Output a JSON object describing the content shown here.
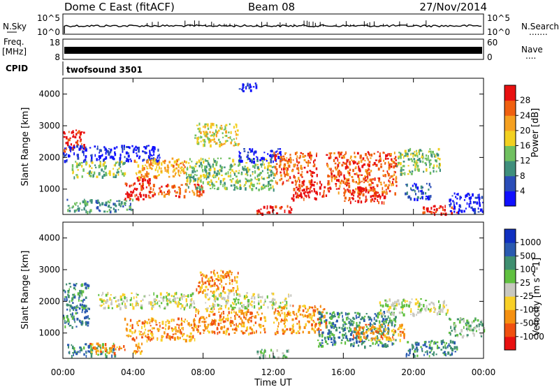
{
  "header": {
    "title": "Dome C East (fitACF)",
    "beam": "Beam 08",
    "date": "27/Nov/2014"
  },
  "nsky_panel": {
    "left_label": "N.Sky",
    "right_label": "N.Search",
    "right_dots": ".......",
    "left_ticks": [
      "10^5",
      "10^0"
    ],
    "right_ticks": [
      "10^5",
      "10^0"
    ]
  },
  "freq_panel": {
    "left_label_line1": "Freq.",
    "left_label_line2": "[MHz]",
    "right_label": "Nave",
    "right_dots": "....",
    "left_ticks": [
      "18",
      "8"
    ],
    "right_ticks": [
      "60",
      "0"
    ]
  },
  "cpid_panel": {
    "label": "CPID",
    "text": "twofsound 3501"
  },
  "chart_data": [
    {
      "type": "heatmap",
      "name": "Power",
      "ylabel": "Slant Range [km]",
      "ylim": [
        200,
        4500
      ],
      "yticks": [
        1000,
        2000,
        3000,
        4000
      ],
      "xlim": [
        0,
        24
      ],
      "colorbar": {
        "label": "Power [dB]",
        "tick_labels": [
          "4",
          "8",
          "12",
          "16",
          "20",
          "24",
          "28"
        ],
        "colors": [
          "#1010ff",
          "#2a4db8",
          "#3f8f7c",
          "#70c060",
          "#f2d020",
          "#f5a020",
          "#f06010",
          "#e81010"
        ]
      },
      "bands": [
        {
          "t0": 0.0,
          "t1": 1.2,
          "r0": 2200,
          "r1": 2900,
          "level": 7
        },
        {
          "t0": 0.0,
          "t1": 5.5,
          "r0": 1900,
          "r1": 2400,
          "level": 0
        },
        {
          "t0": 0.2,
          "t1": 4.0,
          "r0": 300,
          "r1": 700,
          "level": 2
        },
        {
          "t0": 0.5,
          "t1": 3.5,
          "r0": 1400,
          "r1": 1900,
          "level": 3
        },
        {
          "t0": 3.5,
          "t1": 5.0,
          "r0": 700,
          "r1": 1400,
          "level": 7
        },
        {
          "t0": 4.0,
          "t1": 7.0,
          "r0": 1400,
          "r1": 2000,
          "level": 5
        },
        {
          "t0": 5.0,
          "t1": 8.0,
          "r0": 800,
          "r1": 1200,
          "level": 6
        },
        {
          "t0": 7.5,
          "t1": 10.0,
          "r0": 2400,
          "r1": 3100,
          "level": 4
        },
        {
          "t0": 7.0,
          "t1": 12.0,
          "r0": 1000,
          "r1": 2000,
          "level": 3
        },
        {
          "t0": 10.0,
          "t1": 12.5,
          "r0": 1900,
          "r1": 2300,
          "level": 0
        },
        {
          "t0": 11.0,
          "t1": 13.0,
          "r0": 250,
          "r1": 500,
          "level": 7
        },
        {
          "t0": 12.0,
          "t1": 14.5,
          "r0": 1200,
          "r1": 2200,
          "level": 6
        },
        {
          "t0": 13.0,
          "t1": 15.0,
          "r0": 700,
          "r1": 1300,
          "level": 7
        },
        {
          "t0": 15.0,
          "t1": 19.0,
          "r0": 900,
          "r1": 2200,
          "level": 6
        },
        {
          "t0": 16.0,
          "t1": 18.5,
          "r0": 600,
          "r1": 1100,
          "level": 7
        },
        {
          "t0": 19.0,
          "t1": 21.5,
          "r0": 1500,
          "r1": 2300,
          "level": 3
        },
        {
          "t0": 19.5,
          "t1": 21.0,
          "r0": 700,
          "r1": 1200,
          "level": 1
        },
        {
          "t0": 20.5,
          "t1": 22.5,
          "r0": 250,
          "r1": 500,
          "level": 7
        },
        {
          "t0": 22.0,
          "t1": 24.0,
          "r0": 300,
          "r1": 900,
          "level": 0
        },
        {
          "t0": 10.0,
          "t1": 11.0,
          "r0": 4100,
          "r1": 4400,
          "level": 0
        }
      ]
    },
    {
      "type": "heatmap",
      "name": "Velocity",
      "ylabel": "Slant Range [km]",
      "ylim": [
        200,
        4500
      ],
      "yticks": [
        1000,
        2000,
        3000,
        4000
      ],
      "xlim": [
        0,
        24
      ],
      "xlabel": "Time UT",
      "xtick_labels": [
        "00:00",
        "04:00",
        "08:00",
        "12:00",
        "16:00",
        "20:00",
        "00:00"
      ],
      "colorbar": {
        "label": "Velocity [m s^-1]",
        "tick_labels": [
          "1000",
          "500",
          "100",
          "25",
          "-25",
          "-100",
          "-500",
          "-1000"
        ],
        "colors": [
          "#1030c0",
          "#2a5ab0",
          "#3f8f70",
          "#60c040",
          "#c8c8c0",
          "#f8d028",
          "#f59010",
          "#f05010",
          "#e81010"
        ]
      },
      "bands": [
        {
          "t0": 0.0,
          "t1": 1.5,
          "r0": 1200,
          "r1": 2600,
          "level": 2
        },
        {
          "t0": 0.2,
          "t1": 3.0,
          "r0": 300,
          "r1": 700,
          "level": 2
        },
        {
          "t0": 1.5,
          "t1": 4.5,
          "r0": 400,
          "r1": 700,
          "level": 6
        },
        {
          "t0": 2.0,
          "t1": 7.5,
          "r0": 1800,
          "r1": 2300,
          "level": 4
        },
        {
          "t0": 3.5,
          "t1": 7.5,
          "r0": 800,
          "r1": 1500,
          "level": 6
        },
        {
          "t0": 7.5,
          "t1": 10.0,
          "r0": 2300,
          "r1": 3000,
          "level": 6
        },
        {
          "t0": 7.5,
          "t1": 11.5,
          "r0": 1000,
          "r1": 1800,
          "level": 6
        },
        {
          "t0": 8.0,
          "t1": 13.0,
          "r0": 1800,
          "r1": 2300,
          "level": 4
        },
        {
          "t0": 11.0,
          "t1": 13.0,
          "r0": 250,
          "r1": 500,
          "level": 3
        },
        {
          "t0": 12.0,
          "t1": 15.0,
          "r0": 1000,
          "r1": 1900,
          "level": 6
        },
        {
          "t0": 14.5,
          "t1": 19.0,
          "r0": 600,
          "r1": 1700,
          "level": 2
        },
        {
          "t0": 16.5,
          "t1": 19.5,
          "r0": 800,
          "r1": 1300,
          "level": 6
        },
        {
          "t0": 18.0,
          "t1": 22.0,
          "r0": 1600,
          "r1": 2100,
          "level": 4
        },
        {
          "t0": 19.5,
          "t1": 22.5,
          "r0": 300,
          "r1": 800,
          "level": 2
        },
        {
          "t0": 22.0,
          "t1": 24.0,
          "r0": 900,
          "r1": 1500,
          "level": 3
        }
      ]
    }
  ]
}
